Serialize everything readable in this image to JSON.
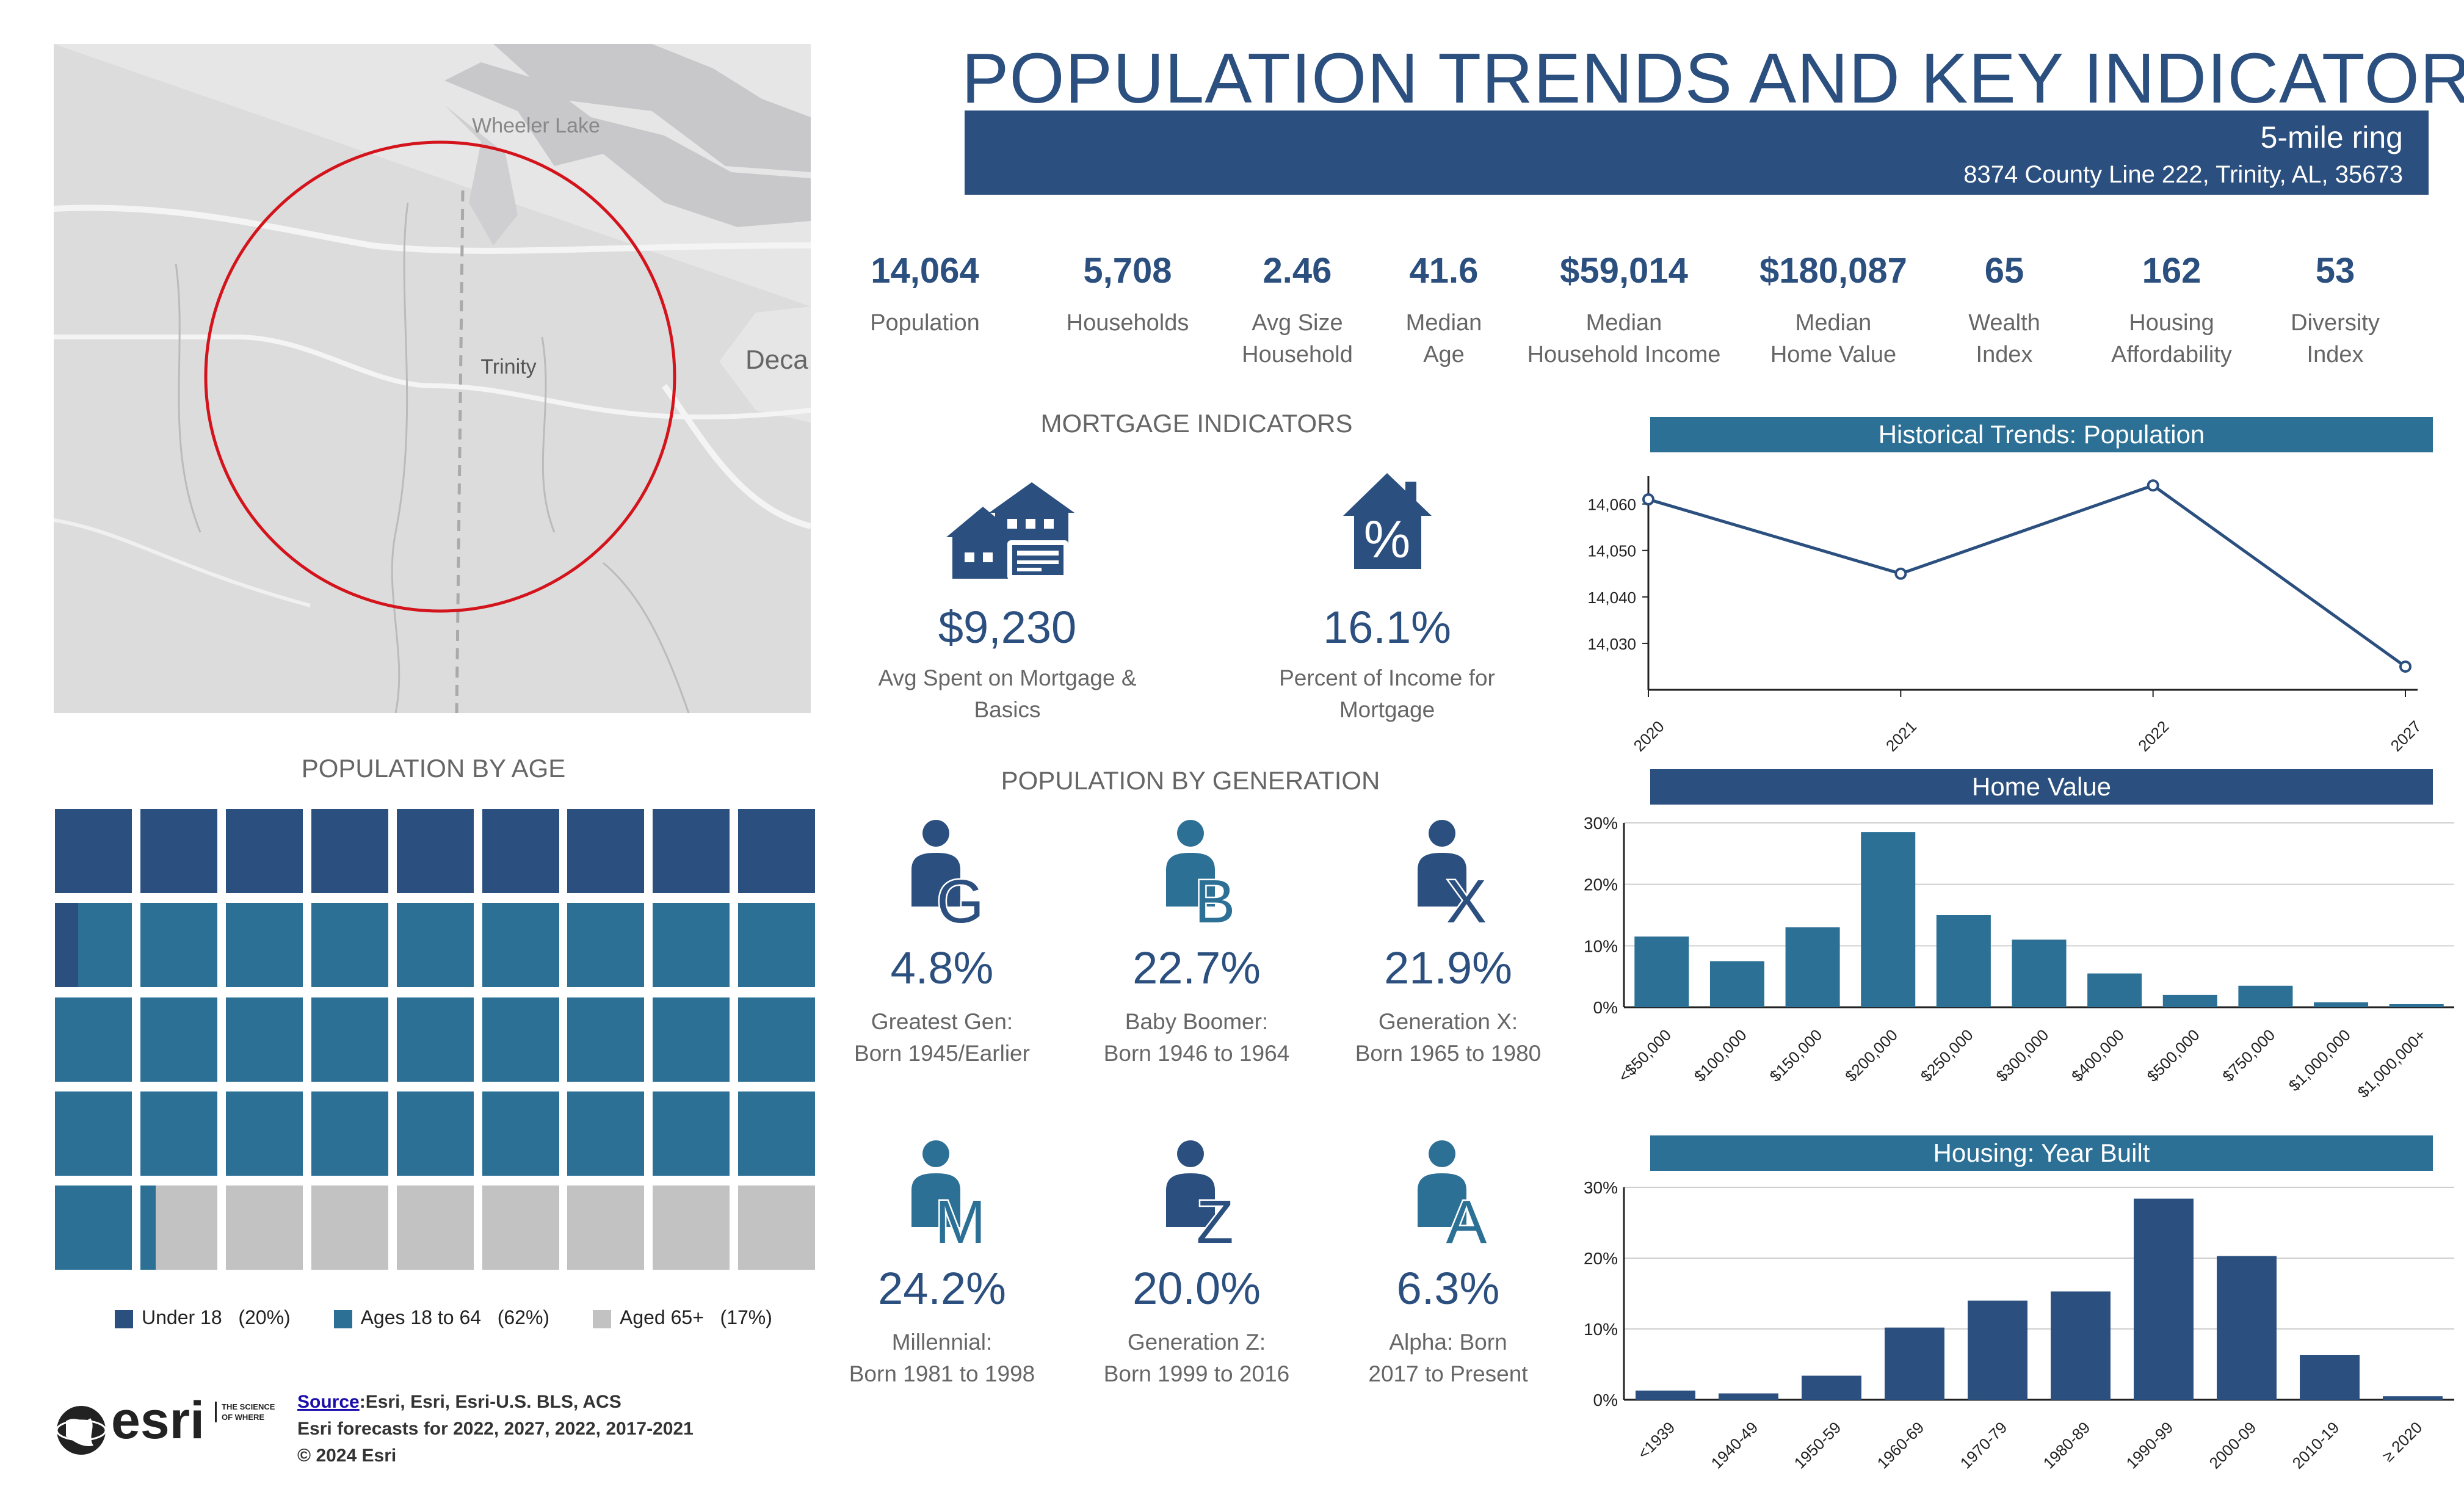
{
  "header": {
    "title": "POPULATION TRENDS AND KEY INDICATORS",
    "subtitle": "5-mile ring",
    "address": "8374 County Line 222, Trinity, AL, 35673"
  },
  "map": {
    "labels": [
      "Wheeler Lake",
      "Trinity",
      "Deca"
    ]
  },
  "kpis": [
    {
      "value": "14,064",
      "label": "Population"
    },
    {
      "value": "5,708",
      "label": "Households"
    },
    {
      "value": "2.46",
      "label": "Avg Size\nHousehold"
    },
    {
      "value": "41.6",
      "label": "Median\nAge"
    },
    {
      "value": "$59,014",
      "label": "Median\nHousehold Income"
    },
    {
      "value": "$180,087",
      "label": "Median\nHome Value"
    },
    {
      "value": "65",
      "label": "Wealth\nIndex"
    },
    {
      "value": "162",
      "label": "Housing\nAffordability"
    },
    {
      "value": "53",
      "label": "Diversity\nIndex"
    }
  ],
  "mortgage": {
    "heading": "MORTGAGE INDICATORS",
    "spent_value": "$9,230",
    "spent_label": "Avg Spent on Mortgage &\nBasics",
    "pct_value": "16.1%",
    "pct_label": "Percent of Income for\nMortgage",
    "house_icon_glyph": "%"
  },
  "age": {
    "heading": "POPULATION BY AGE",
    "legend": [
      {
        "label": "Under 18",
        "pct": "(20%)",
        "color": "#2b4f7e"
      },
      {
        "label": "Ages 18 to 64",
        "pct": "(62%)",
        "color": "#2c7096"
      },
      {
        "label": "Aged 65+",
        "pct": "(17%)",
        "color": "#c2c2c2"
      }
    ],
    "waffle_counts": {
      "under18": 9.3,
      "ages18to64": 27.9,
      "aged65": 7.8
    }
  },
  "generation": {
    "heading": "POPULATION BY GENERATION",
    "items": [
      {
        "letter": "G",
        "value": "4.8%",
        "label": "Greatest Gen:\nBorn 1945/Earlier",
        "color": "#2b4f7e"
      },
      {
        "letter": "B",
        "value": "22.7%",
        "label": "Baby Boomer:\nBorn 1946 to 1964",
        "color": "#2c7096"
      },
      {
        "letter": "X",
        "value": "21.9%",
        "label": "Generation X:\nBorn 1965 to 1980",
        "color": "#2b4f7e"
      },
      {
        "letter": "M",
        "value": "24.2%",
        "label": "Millennial:\nBorn 1981 to 1998",
        "color": "#2c7096"
      },
      {
        "letter": "Z",
        "value": "20.0%",
        "label": "Generation Z:\nBorn 1999 to 2016",
        "color": "#2b4f7e"
      },
      {
        "letter": "A",
        "value": "6.3%",
        "label": "Alpha:  Born\n2017 to Present",
        "color": "#2c7096"
      }
    ]
  },
  "footer": {
    "logo_text": "esri",
    "tagline": "THE SCIENCE OF WHERE",
    "source_label": "Source",
    "source_text": ":Esri, Esri, Esri-U.S. BLS, ACS",
    "forecast_text": "Esri forecasts for 2022, 2027, 2022, 2017-2021",
    "copyright": "© 2024 Esri"
  },
  "chart_data": [
    {
      "type": "line",
      "title": "Historical Trends: Population",
      "x": [
        "2020",
        "2021",
        "2022",
        "2027"
      ],
      "values": [
        14061,
        14045,
        14064,
        14025
      ],
      "ylim": [
        14020,
        14066
      ],
      "yticks": [
        14030,
        14040,
        14050,
        14060
      ],
      "ytick_labels": [
        "14,030",
        "14,040",
        "14,050",
        "14,060"
      ],
      "color": "#2b4f7e"
    },
    {
      "type": "bar",
      "title": "Home Value",
      "categories": [
        "<$50,000",
        "$100,000",
        "$150,000",
        "$200,000",
        "$250,000",
        "$300,000",
        "$400,000",
        "$500,000",
        "$750,000",
        "$1,000,000",
        "$1,000,000+"
      ],
      "values": [
        11.5,
        7.5,
        13,
        28.5,
        15,
        11,
        5.5,
        2,
        3.5,
        0.8,
        0.5
      ],
      "ylim": [
        0,
        30
      ],
      "yticks": [
        0,
        10,
        20,
        30
      ],
      "ytick_labels": [
        "0%",
        "10%",
        "20%",
        "30%"
      ],
      "color": "#2c7096"
    },
    {
      "type": "bar",
      "title": "Housing: Year Built",
      "categories": [
        "<1939",
        "1940-49",
        "1950-59",
        "1960-69",
        "1970-79",
        "1980-89",
        "1990-99",
        "2000-09",
        "2010-19",
        "≥ 2020"
      ],
      "values": [
        1.3,
        0.9,
        3.4,
        10.2,
        14,
        15.3,
        28.4,
        20.3,
        6.3,
        0.5
      ],
      "ylim": [
        0,
        30
      ],
      "yticks": [
        0,
        10,
        20,
        30
      ],
      "ytick_labels": [
        "0%",
        "10%",
        "20%",
        "30%"
      ],
      "color": "#2b4f7e"
    }
  ]
}
